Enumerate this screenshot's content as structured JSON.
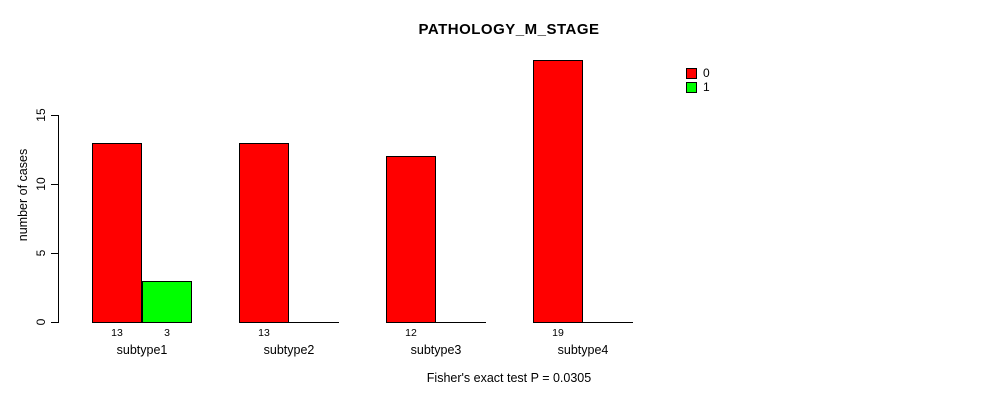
{
  "title": "PATHOLOGY_M_STAGE",
  "footer": "Fisher's exact test P = 0.0305",
  "y_axis": {
    "label": "number of cases",
    "ticks": [
      0,
      5,
      10,
      15
    ]
  },
  "legend": {
    "items": [
      {
        "label": "0",
        "color": "#ff0000"
      },
      {
        "label": "1",
        "color": "#00ff00"
      }
    ]
  },
  "chart_data": {
    "type": "bar",
    "title": "PATHOLOGY_M_STAGE",
    "xlabel": "",
    "ylabel": "number of cases",
    "categories": [
      "subtype1",
      "subtype2",
      "subtype3",
      "subtype4"
    ],
    "series": [
      {
        "name": "0",
        "color": "#ff0000",
        "values": [
          13,
          13,
          12,
          19
        ]
      },
      {
        "name": "1",
        "color": "#00ff00",
        "values": [
          3,
          0,
          0,
          0
        ]
      }
    ],
    "yticks": [
      0,
      5,
      10,
      15
    ],
    "ylim": [
      0,
      19
    ],
    "grid": false,
    "bar_borders": "#000000",
    "value_labels_shown_for_positive_bars": true,
    "legend_position": "right-of-plot-top",
    "annotation": "Fisher's exact test P = 0.0305"
  }
}
